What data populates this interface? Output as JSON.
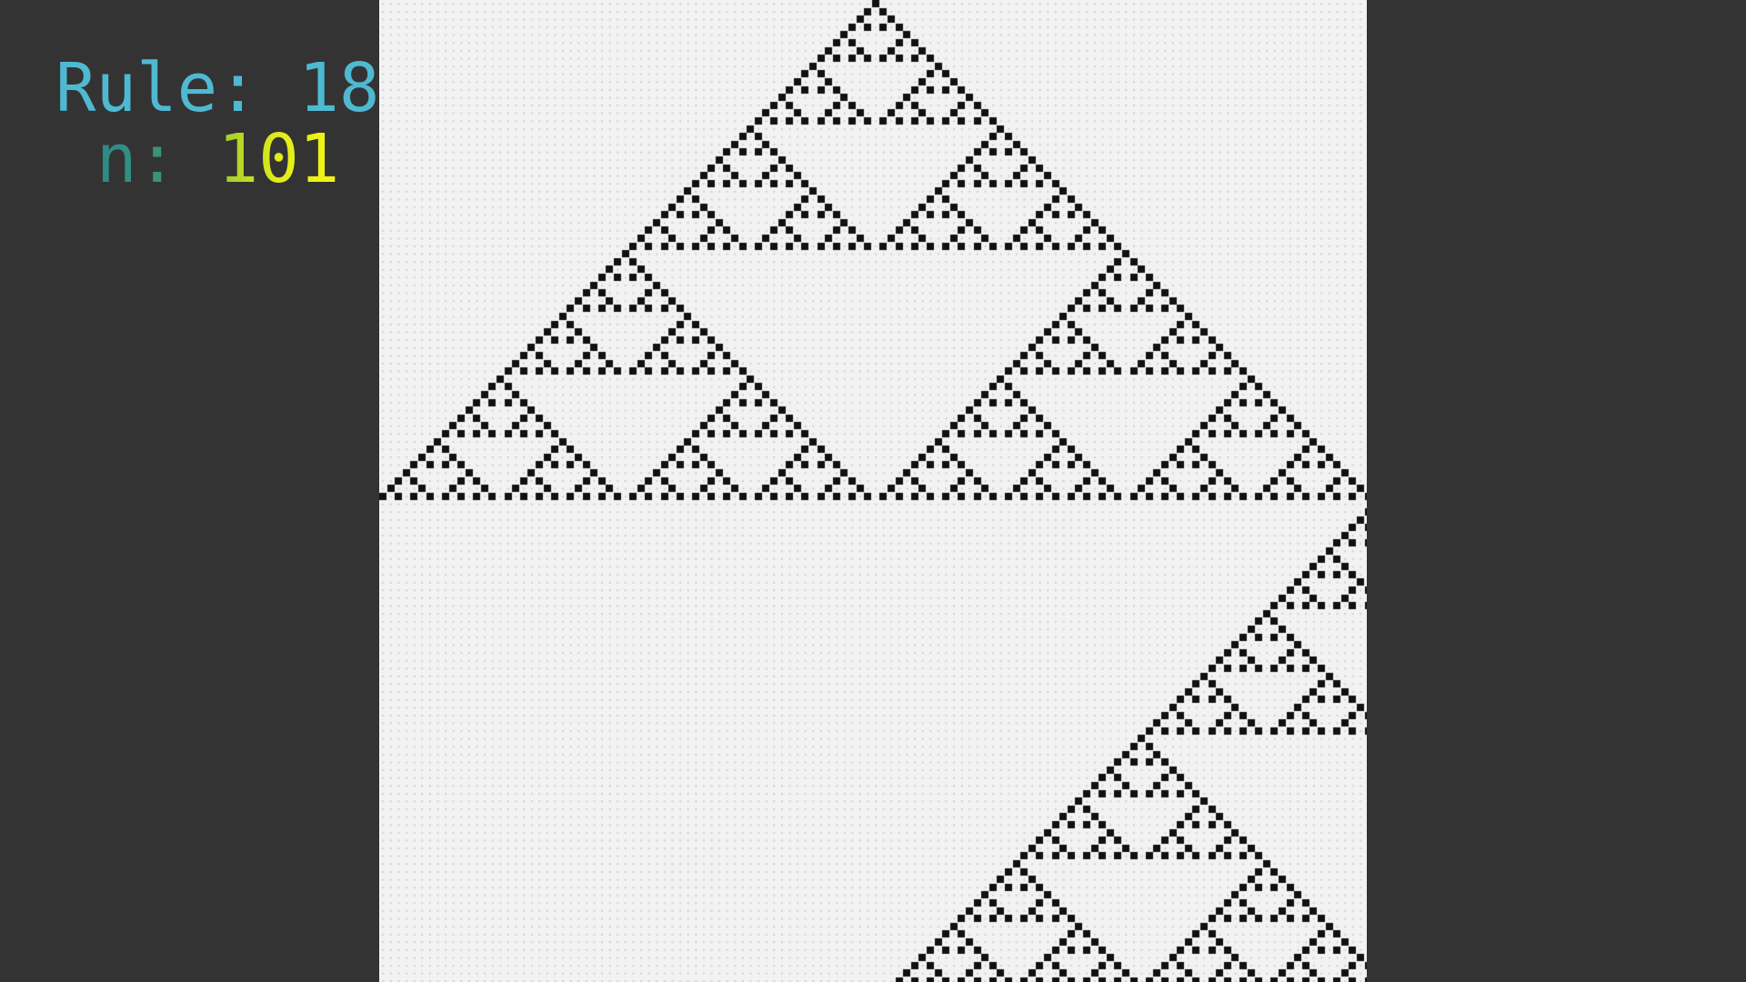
{
  "info": {
    "rule_label": "Rule: ",
    "rule_value": "18",
    "n_label": "n: ",
    "n_value": "101"
  },
  "colors": {
    "background": "#333333",
    "rule_text": "#4fb9d2",
    "n_label": "#2a8a88",
    "n_value": "#e2ec1c",
    "cell_alive": "#111111",
    "cell_dead": "#f2f2f2",
    "cell_dot": "#cfcfcf"
  },
  "automaton": {
    "rule": 18,
    "generation": 101,
    "initial": "single-center-cell"
  }
}
